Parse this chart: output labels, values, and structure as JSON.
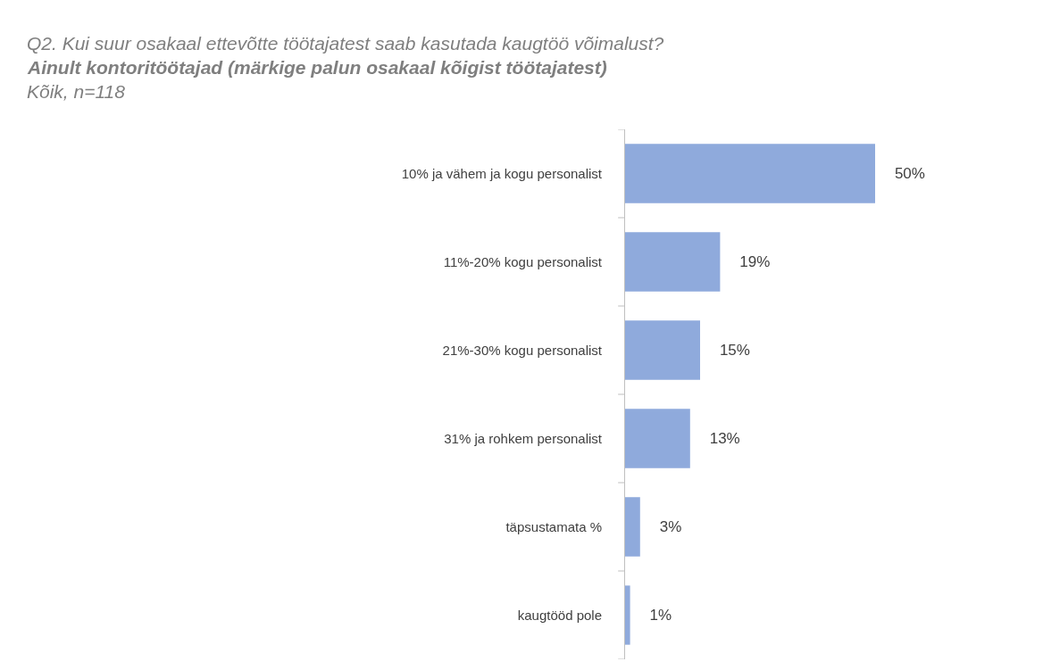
{
  "chart_data": {
    "type": "bar",
    "orientation": "horizontal",
    "title": "Q2. Kui suur osakaal ettevõtte töötajatest saab kasutada kaugtöö võimalust?",
    "subtitle": "Ainult kontoritöötajad (märkige palun osakaal kõigist töötajatest)",
    "annotations": [
      "Kõik, n=118"
    ],
    "categories": [
      "10% ja vähem ja kogu personalist",
      "11%-20% kogu personalist",
      "21%-30% kogu personalist",
      "31% ja rohkem personalist",
      "täpsustamata %",
      "kaugtööd pole"
    ],
    "values": [
      50,
      19,
      15,
      13,
      3,
      1
    ],
    "value_labels": [
      "50%",
      "19%",
      "15%",
      "13%",
      "3%",
      "1%"
    ],
    "color": "#8faadc",
    "legend": false
  }
}
